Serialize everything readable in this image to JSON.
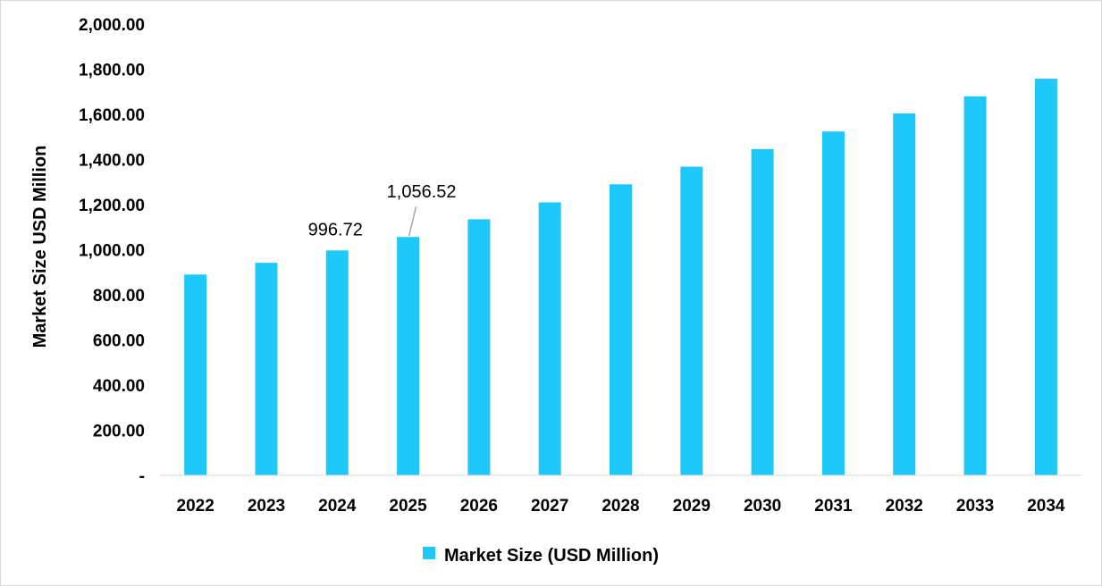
{
  "chart_data": {
    "type": "bar",
    "categories": [
      "2022",
      "2023",
      "2024",
      "2025",
      "2026",
      "2027",
      "2028",
      "2029",
      "2030",
      "2031",
      "2032",
      "2033",
      "2034"
    ],
    "series": [
      {
        "name": "Market Size (USD Million)",
        "color": "#1ec8f8",
        "values": [
          890,
          942,
          996.72,
          1056.52,
          1135,
          1210,
          1290,
          1368,
          1446,
          1524,
          1604,
          1680,
          1758
        ]
      }
    ],
    "data_labels": [
      {
        "category": "2024",
        "text": "996.72"
      },
      {
        "category": "2025",
        "text": "1,056.52"
      }
    ],
    "ylabel": "Market Size USD Million",
    "xlabel": "",
    "ylim": [
      0,
      2000
    ],
    "yticks": [
      "-",
      "200.00",
      "400.00",
      "600.00",
      "800.00",
      "1,000.00",
      "1,200.00",
      "1,400.00",
      "1,600.00",
      "1,800.00",
      "2,000.00"
    ],
    "grid": false,
    "legend": "bottom-center"
  }
}
